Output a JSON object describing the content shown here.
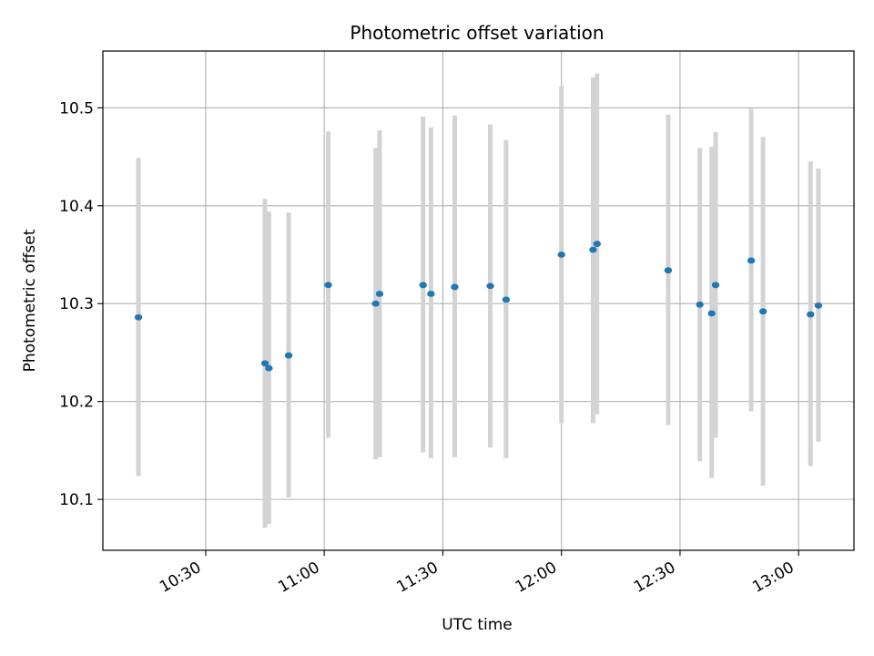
{
  "chart_data": {
    "type": "scatter",
    "title": "Photometric offset variation",
    "xlabel": "UTC time",
    "ylabel": "Photometric offset",
    "x_ticks": [
      "10:30",
      "11:00",
      "11:30",
      "12:00",
      "12:30",
      "13:00"
    ],
    "y_ticks": [
      "10.1",
      "10.2",
      "10.3",
      "10.4",
      "10.5"
    ],
    "xlim": [
      "10:04",
      "13:14"
    ],
    "ylim": [
      10.048,
      10.558
    ],
    "grid": true,
    "colors": {
      "point": "#1f77b4",
      "errorbar": "#d3d3d3",
      "grid": "#b0b0b0"
    },
    "points": [
      {
        "time": "10:13",
        "value": 10.286,
        "err_low": 10.124,
        "err_high": 10.449
      },
      {
        "time": "10:45",
        "value": 10.239,
        "err_low": 10.071,
        "err_high": 10.407
      },
      {
        "time": "10:46",
        "value": 10.234,
        "err_low": 10.075,
        "err_high": 10.394
      },
      {
        "time": "10:51",
        "value": 10.247,
        "err_low": 10.102,
        "err_high": 10.393
      },
      {
        "time": "11:01",
        "value": 10.319,
        "err_low": 10.163,
        "err_high": 10.476
      },
      {
        "time": "11:13",
        "value": 10.3,
        "err_low": 10.141,
        "err_high": 10.459
      },
      {
        "time": "11:14",
        "value": 10.31,
        "err_low": 10.143,
        "err_high": 10.477
      },
      {
        "time": "11:25",
        "value": 10.319,
        "err_low": 10.148,
        "err_high": 10.491
      },
      {
        "time": "11:27",
        "value": 10.31,
        "err_low": 10.142,
        "err_high": 10.48
      },
      {
        "time": "11:33",
        "value": 10.317,
        "err_low": 10.143,
        "err_high": 10.492
      },
      {
        "time": "11:42",
        "value": 10.318,
        "err_low": 10.153,
        "err_high": 10.483
      },
      {
        "time": "11:46",
        "value": 10.304,
        "err_low": 10.142,
        "err_high": 10.467
      },
      {
        "time": "12:00",
        "value": 10.35,
        "err_low": 10.178,
        "err_high": 10.522
      },
      {
        "time": "12:08",
        "value": 10.355,
        "err_low": 10.178,
        "err_high": 10.531
      },
      {
        "time": "12:09",
        "value": 10.361,
        "err_low": 10.187,
        "err_high": 10.535
      },
      {
        "time": "12:27",
        "value": 10.334,
        "err_low": 10.176,
        "err_high": 10.493
      },
      {
        "time": "12:35",
        "value": 10.299,
        "err_low": 10.139,
        "err_high": 10.459
      },
      {
        "time": "12:38",
        "value": 10.29,
        "err_low": 10.122,
        "err_high": 10.46
      },
      {
        "time": "12:39",
        "value": 10.319,
        "err_low": 10.163,
        "err_high": 10.475
      },
      {
        "time": "12:48",
        "value": 10.344,
        "err_low": 10.19,
        "err_high": 10.499
      },
      {
        "time": "12:51",
        "value": 10.292,
        "err_low": 10.114,
        "err_high": 10.47
      },
      {
        "time": "13:03",
        "value": 10.289,
        "err_low": 10.134,
        "err_high": 10.445
      },
      {
        "time": "13:05",
        "value": 10.298,
        "err_low": 10.159,
        "err_high": 10.438
      }
    ]
  }
}
